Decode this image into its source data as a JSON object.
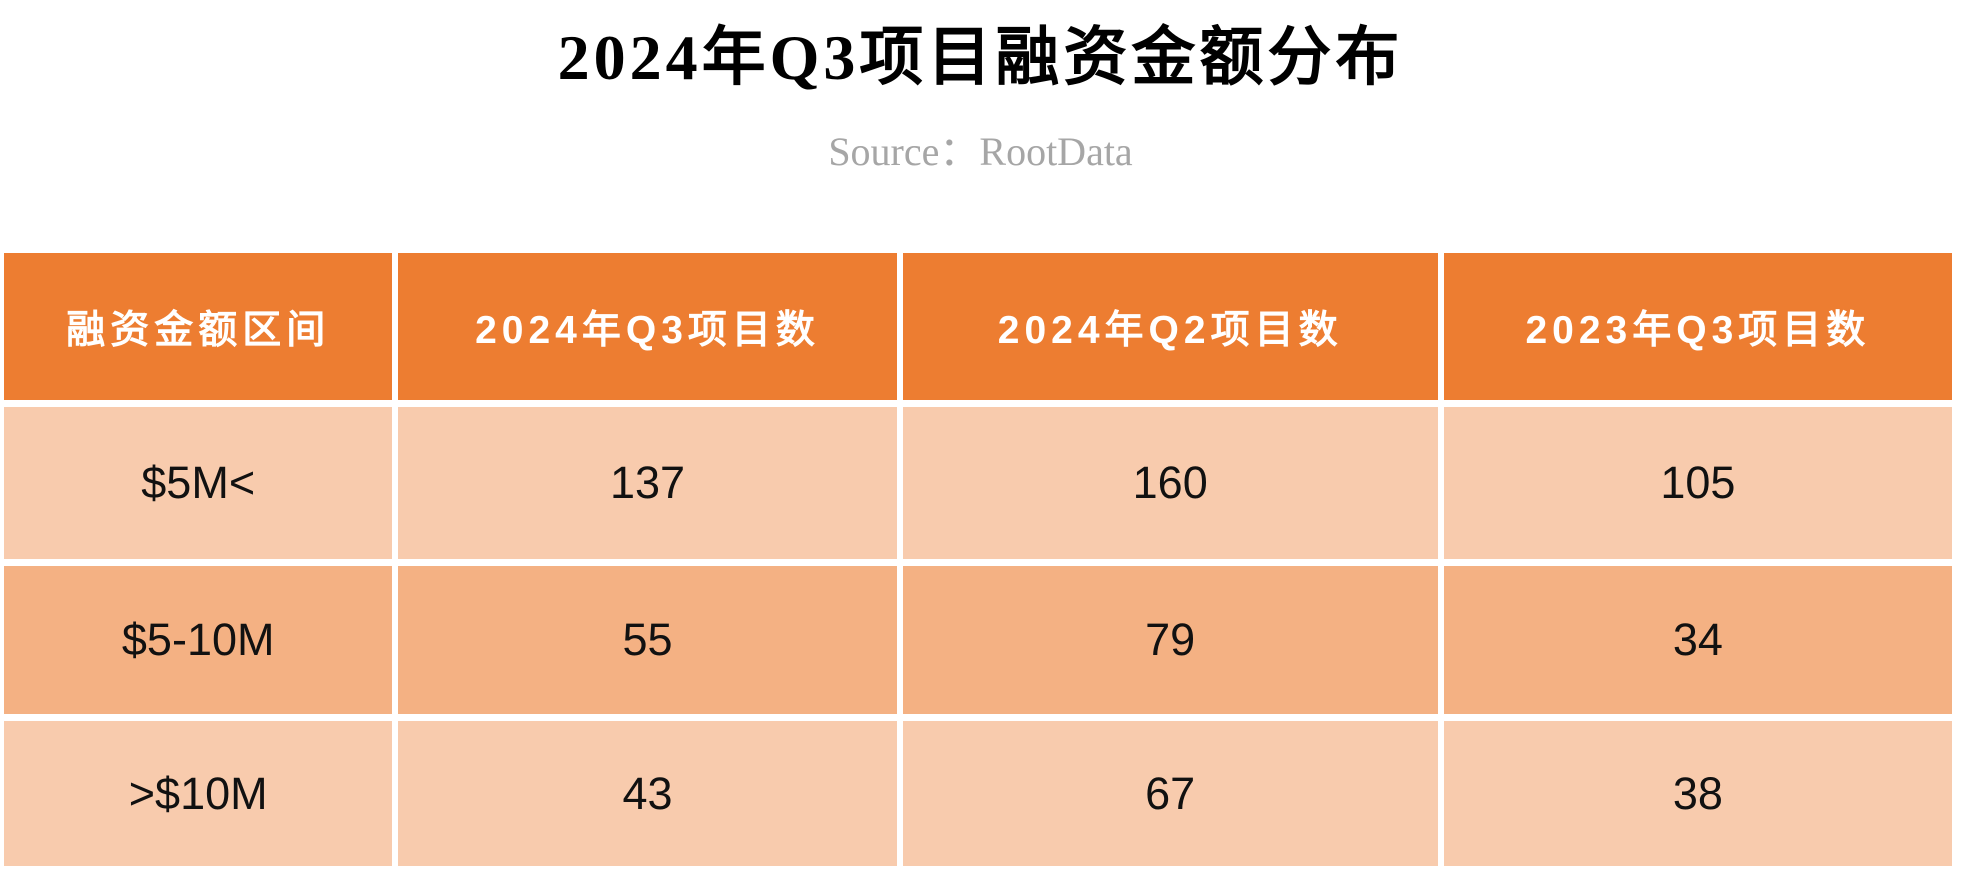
{
  "chart_data": {
    "type": "table",
    "title": "2024年Q3项目融资金额分布",
    "source": "Source：RootData",
    "columns": [
      "融资金额区间",
      "2024年Q3项目数",
      "2024年Q2项目数",
      "2023年Q3项目数"
    ],
    "rows": [
      [
        "$5M<",
        "137",
        "160",
        "105"
      ],
      [
        "$5-10M",
        "55",
        "79",
        "34"
      ],
      [
        ">$10M",
        "43",
        "67",
        "38"
      ]
    ],
    "rows_numeric": [
      {
        "range": "$5M<",
        "q3_2024": 137,
        "q2_2024": 160,
        "q3_2023": 105
      },
      {
        "range": "$5-10M",
        "q3_2024": 55,
        "q2_2024": 79,
        "q3_2023": 34
      },
      {
        "range": ">$10M",
        "q3_2024": 43,
        "q2_2024": 67,
        "q3_2023": 38
      }
    ],
    "layout": {
      "grid": "white gridlines",
      "header_position": "top",
      "row_striping": "light-dark-light"
    }
  },
  "colors": {
    "header_bg": "#ED7D31",
    "row_light": "#F8CBAD",
    "row_dark": "#F4B183",
    "title_text": "#000000",
    "source_text": "#A6A6A6",
    "cell_text": "#111111",
    "header_text": "#FFFFFF"
  }
}
